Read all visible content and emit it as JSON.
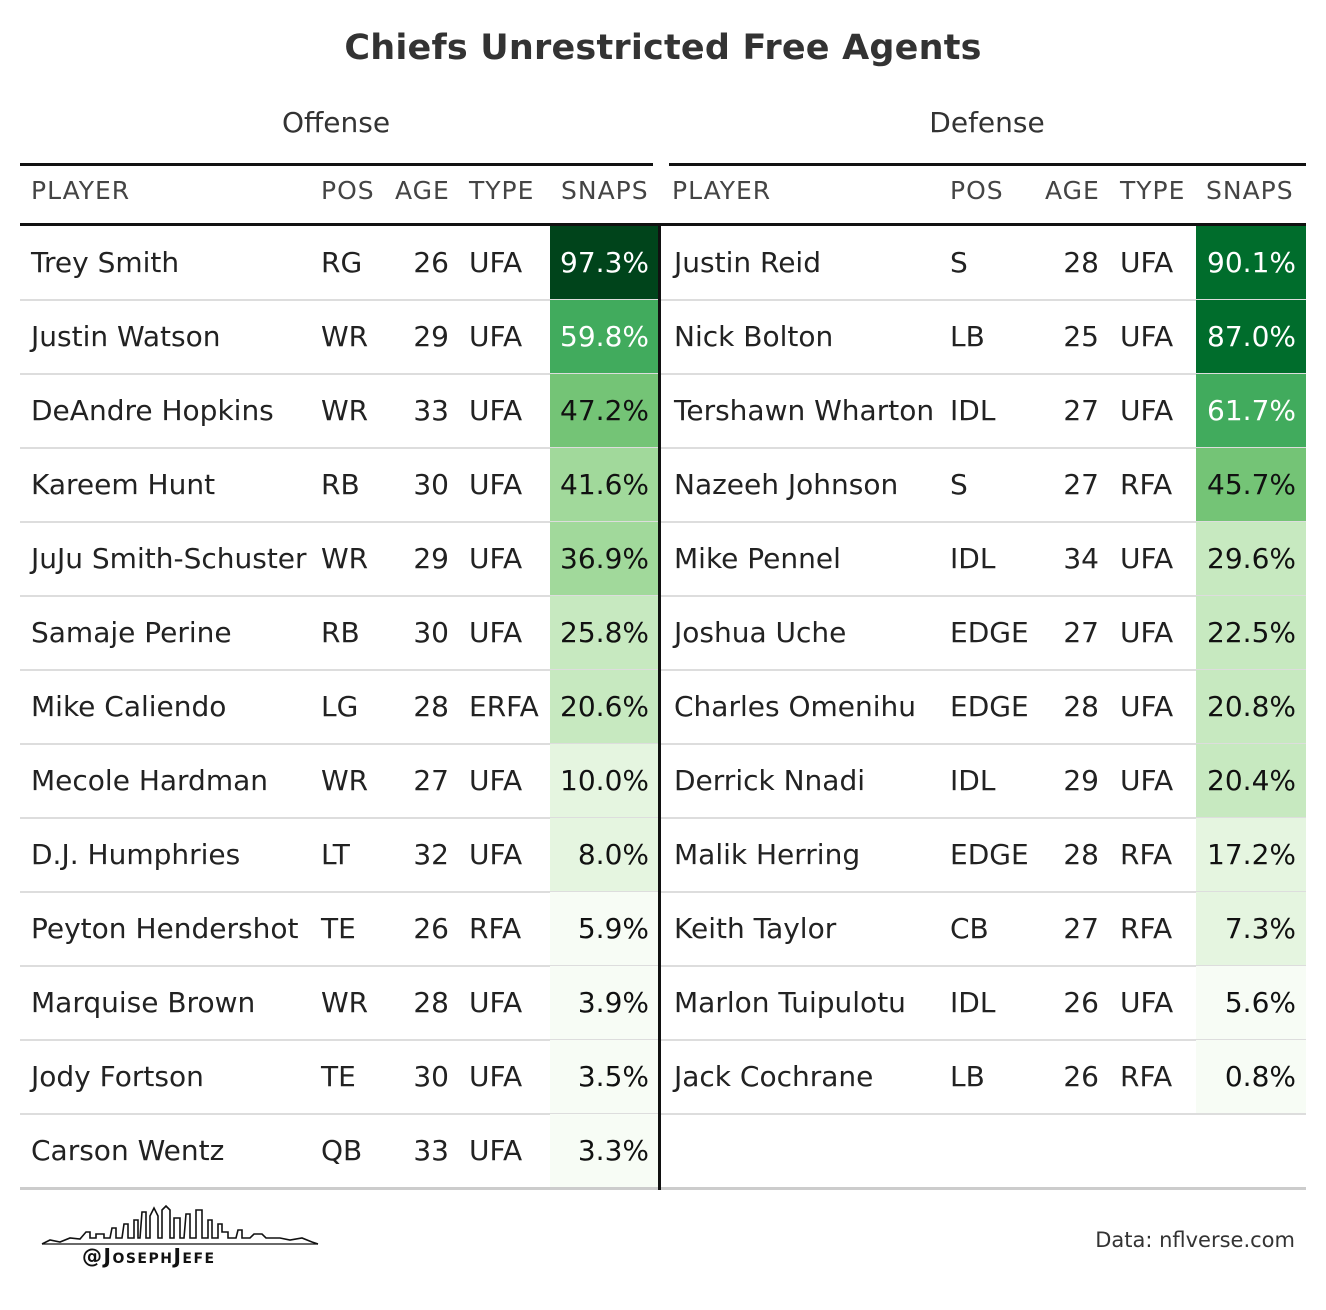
{
  "title": "Chiefs Unrestricted Free Agents",
  "offense": {
    "label": "Offense",
    "headers": [
      "PLAYER",
      "POS",
      "AGE",
      "TYPE",
      "SNAPS"
    ],
    "rows": [
      {
        "player": "Trey Smith",
        "pos": "RG",
        "age": "26",
        "type": "UFA",
        "snaps": "97.3%",
        "value": 97.3
      },
      {
        "player": "Justin Watson",
        "pos": "WR",
        "age": "29",
        "type": "UFA",
        "snaps": "59.8%",
        "value": 59.8
      },
      {
        "player": "DeAndre Hopkins",
        "pos": "WR",
        "age": "33",
        "type": "UFA",
        "snaps": "47.2%",
        "value": 47.2
      },
      {
        "player": "Kareem Hunt",
        "pos": "RB",
        "age": "30",
        "type": "UFA",
        "snaps": "41.6%",
        "value": 41.6
      },
      {
        "player": "JuJu Smith-Schuster",
        "pos": "WR",
        "age": "29",
        "type": "UFA",
        "snaps": "36.9%",
        "value": 36.9
      },
      {
        "player": "Samaje Perine",
        "pos": "RB",
        "age": "30",
        "type": "UFA",
        "snaps": "25.8%",
        "value": 25.8
      },
      {
        "player": "Mike Caliendo",
        "pos": "LG",
        "age": "28",
        "type": "ERFA",
        "snaps": "20.6%",
        "value": 20.6
      },
      {
        "player": "Mecole Hardman",
        "pos": "WR",
        "age": "27",
        "type": "UFA",
        "snaps": "10.0%",
        "value": 10.0
      },
      {
        "player": "D.J. Humphries",
        "pos": "LT",
        "age": "32",
        "type": "UFA",
        "snaps": "8.0%",
        "value": 8.0
      },
      {
        "player": "Peyton Hendershot",
        "pos": "TE",
        "age": "26",
        "type": "RFA",
        "snaps": "5.9%",
        "value": 5.9
      },
      {
        "player": "Marquise Brown",
        "pos": "WR",
        "age": "28",
        "type": "UFA",
        "snaps": "3.9%",
        "value": 3.9
      },
      {
        "player": "Jody Fortson",
        "pos": "TE",
        "age": "30",
        "type": "UFA",
        "snaps": "3.5%",
        "value": 3.5
      },
      {
        "player": "Carson Wentz",
        "pos": "QB",
        "age": "33",
        "type": "UFA",
        "snaps": "3.3%",
        "value": 3.3
      }
    ]
  },
  "defense": {
    "label": "Defense",
    "headers": [
      "PLAYER",
      "POS",
      "AGE",
      "TYPE",
      "SNAPS"
    ],
    "rows": [
      {
        "player": "Justin Reid",
        "pos": "S",
        "age": "28",
        "type": "UFA",
        "snaps": "90.1%",
        "value": 90.1
      },
      {
        "player": "Nick Bolton",
        "pos": "LB",
        "age": "25",
        "type": "UFA",
        "snaps": "87.0%",
        "value": 87.0
      },
      {
        "player": "Tershawn Wharton",
        "pos": "IDL",
        "age": "27",
        "type": "UFA",
        "snaps": "61.7%",
        "value": 61.7
      },
      {
        "player": "Nazeeh Johnson",
        "pos": "S",
        "age": "27",
        "type": "RFA",
        "snaps": "45.7%",
        "value": 45.7
      },
      {
        "player": "Mike Pennel",
        "pos": "IDL",
        "age": "34",
        "type": "UFA",
        "snaps": "29.6%",
        "value": 29.6
      },
      {
        "player": "Joshua Uche",
        "pos": "EDGE",
        "age": "27",
        "type": "UFA",
        "snaps": "22.5%",
        "value": 22.5
      },
      {
        "player": "Charles Omenihu",
        "pos": "EDGE",
        "age": "28",
        "type": "UFA",
        "snaps": "20.8%",
        "value": 20.8
      },
      {
        "player": "Derrick Nnadi",
        "pos": "IDL",
        "age": "29",
        "type": "UFA",
        "snaps": "20.4%",
        "value": 20.4
      },
      {
        "player": "Malik Herring",
        "pos": "EDGE",
        "age": "28",
        "type": "RFA",
        "snaps": "17.2%",
        "value": 17.2
      },
      {
        "player": "Keith Taylor",
        "pos": "CB",
        "age": "27",
        "type": "RFA",
        "snaps": "7.3%",
        "value": 7.3
      },
      {
        "player": "Marlon Tuipulotu",
        "pos": "IDL",
        "age": "26",
        "type": "UFA",
        "snaps": "5.6%",
        "value": 5.6
      },
      {
        "player": "Jack Cochrane",
        "pos": "LB",
        "age": "26",
        "type": "RFA",
        "snaps": "0.8%",
        "value": 0.8
      }
    ]
  },
  "colors": {
    "scale": [
      "#f7fcf5",
      "#e5f5e0",
      "#c7e9c0",
      "#a1d99b",
      "#74c476",
      "#41ab5d",
      "#238b45",
      "#006d2c",
      "#00441b"
    ]
  },
  "footer": {
    "handle": "@JosephJefe",
    "source": "Data: nflverse.com"
  },
  "chart_data": {
    "type": "table",
    "title": "Chiefs Unrestricted Free Agents",
    "columns": [
      "PLAYER",
      "POS",
      "AGE",
      "TYPE",
      "SNAPS"
    ],
    "groups": [
      "Offense",
      "Defense"
    ]
  }
}
